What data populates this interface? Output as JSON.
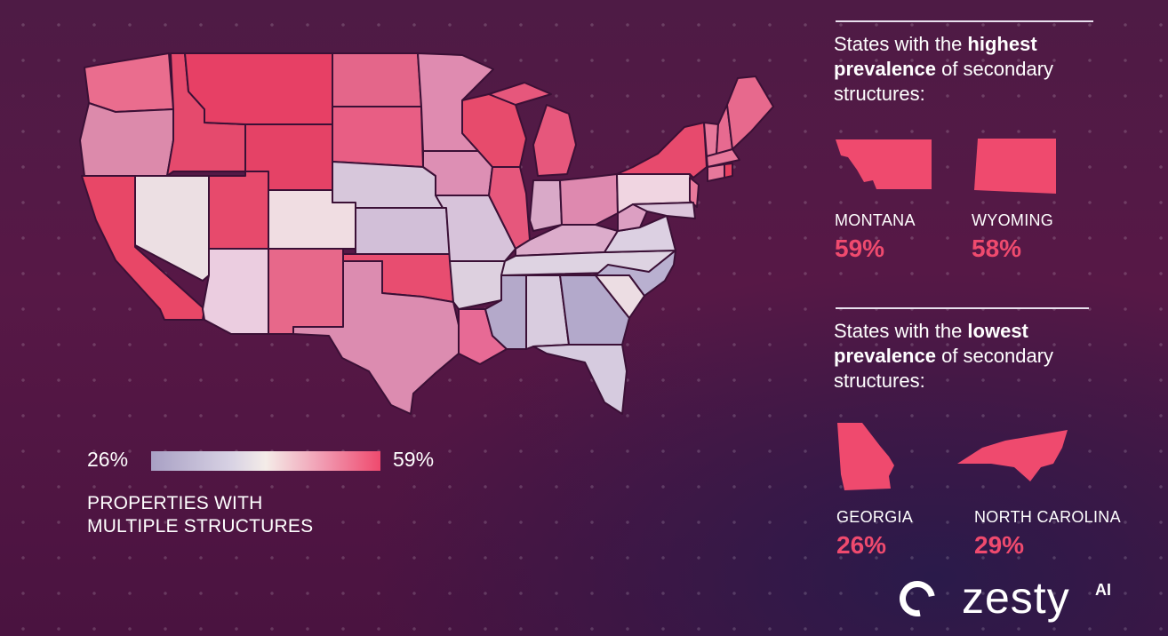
{
  "legend": {
    "min_label": "26%",
    "max_label": "59%",
    "title": "PROPERTIES WITH MULTIPLE STRUCTURES",
    "title_line1": "PROPERTIES WITH",
    "title_line2": "MULTIPLE STRUCTURES",
    "scale_min": 26,
    "scale_max": 59,
    "scale_colors": [
      "#a8a0c4",
      "#f4ece8",
      "#ef4a6e"
    ]
  },
  "highest": {
    "heading_pre": "States with the ",
    "heading_bold1": "highest",
    "heading_bold2": "prevalence",
    "heading_post": " of secondary",
    "heading_end": "structures:",
    "states": [
      {
        "name": "MONTANA",
        "value": "59%"
      },
      {
        "name": "WYOMING",
        "value": "58%"
      }
    ]
  },
  "lowest": {
    "heading_pre": "States with the ",
    "heading_bold1": "lowest",
    "heading_bold2": "prevalence",
    "heading_post": " of secondary",
    "heading_end": "structures:",
    "states": [
      {
        "name": "GEORGIA",
        "value": "26%"
      },
      {
        "name": "NORTH CAROLINA",
        "value": "29%"
      }
    ]
  },
  "brand": {
    "word": "zesty",
    "suffix": "AI"
  },
  "colors": {
    "accent": "#ef4a6e",
    "low": "#a8a0c4",
    "mid": "#f4ece8"
  }
}
